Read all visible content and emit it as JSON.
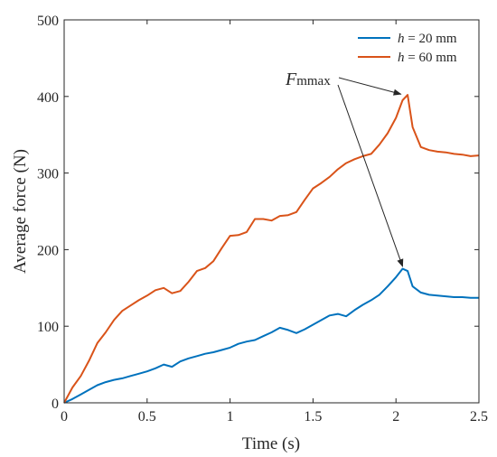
{
  "chart_data": {
    "type": "line",
    "xlabel": "Time (s)",
    "ylabel": "Average force (N)",
    "xlim": [
      0,
      2.5
    ],
    "ylim": [
      0,
      500
    ],
    "xticks": [
      0,
      0.5,
      1,
      1.5,
      2,
      2.5
    ],
    "yticks": [
      0,
      100,
      200,
      300,
      400,
      500
    ],
    "xtick_labels": [
      "0",
      "0.5",
      "1",
      "1.5",
      "2",
      "2.5"
    ],
    "ytick_labels": [
      "0",
      "100",
      "200",
      "300",
      "400",
      "500"
    ],
    "grid": false,
    "legend_position": "top-right",
    "series": [
      {
        "name_italic": "h",
        "name_rest": " = 20 mm",
        "color": "#0072BD",
        "x": [
          0,
          0.05,
          0.1,
          0.15,
          0.2,
          0.25,
          0.3,
          0.35,
          0.4,
          0.45,
          0.5,
          0.55,
          0.6,
          0.65,
          0.7,
          0.75,
          0.8,
          0.85,
          0.9,
          0.95,
          1.0,
          1.05,
          1.1,
          1.15,
          1.2,
          1.25,
          1.3,
          1.35,
          1.4,
          1.45,
          1.5,
          1.55,
          1.6,
          1.65,
          1.7,
          1.75,
          1.8,
          1.85,
          1.9,
          1.95,
          2.0,
          2.04,
          2.07,
          2.1,
          2.15,
          2.2,
          2.25,
          2.3,
          2.35,
          2.4,
          2.45,
          2.5
        ],
        "y": [
          0,
          5,
          11,
          17,
          23,
          27,
          30,
          32,
          35,
          38,
          41,
          45,
          50,
          47,
          54,
          58,
          61,
          64,
          66,
          69,
          72,
          77,
          80,
          82,
          87,
          92,
          98,
          95,
          91,
          96,
          102,
          108,
          114,
          116,
          113,
          121,
          128,
          134,
          141,
          152,
          164,
          175,
          172,
          152,
          144,
          141,
          140,
          139,
          138,
          138,
          137,
          137
        ]
      },
      {
        "name_italic": "h",
        "name_rest": " = 60 mm",
        "color": "#D95319",
        "x": [
          0,
          0.05,
          0.1,
          0.15,
          0.2,
          0.25,
          0.3,
          0.35,
          0.4,
          0.45,
          0.5,
          0.55,
          0.6,
          0.65,
          0.7,
          0.75,
          0.8,
          0.85,
          0.9,
          0.95,
          1.0,
          1.05,
          1.1,
          1.15,
          1.2,
          1.25,
          1.3,
          1.35,
          1.4,
          1.45,
          1.5,
          1.55,
          1.6,
          1.65,
          1.7,
          1.75,
          1.8,
          1.85,
          1.9,
          1.95,
          2.0,
          2.04,
          2.07,
          2.1,
          2.15,
          2.2,
          2.25,
          2.3,
          2.35,
          2.4,
          2.45,
          2.5
        ],
        "y": [
          0,
          20,
          35,
          55,
          78,
          92,
          108,
          120,
          127,
          134,
          140,
          147,
          150,
          143,
          146,
          158,
          172,
          176,
          185,
          202,
          218,
          219,
          223,
          240,
          240,
          238,
          244,
          245,
          249,
          265,
          280,
          287,
          295,
          305,
          313,
          318,
          322,
          325,
          337,
          352,
          372,
          395,
          402,
          360,
          334,
          330,
          328,
          327,
          325,
          324,
          322,
          323
        ]
      }
    ],
    "annotations": [
      {
        "text_main": "F",
        "text_sub": "mmax",
        "arrows_to": [
          [
            2.03,
            403
          ],
          [
            2.04,
            178
          ]
        ]
      }
    ]
  }
}
